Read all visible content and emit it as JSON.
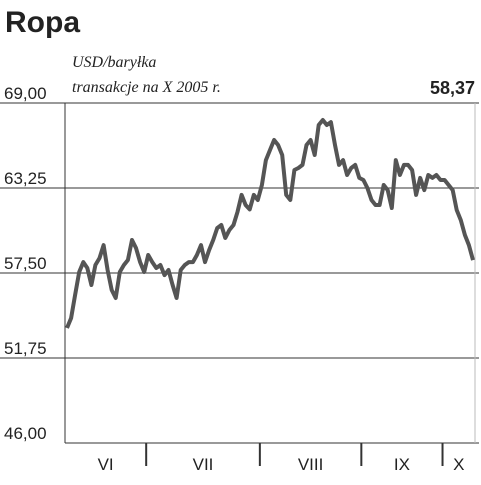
{
  "chart_data": {
    "type": "line",
    "title": "Ropa",
    "subtitle": [
      "USD/baryłka",
      "transakcje na X 2005 r."
    ],
    "value_label": "58,37",
    "color": "#555555",
    "grid": true,
    "categories": [
      "VI",
      "VII",
      "VIII",
      "IX",
      "X"
    ],
    "values": [
      [
        53.78,
        54.45,
        56.01,
        57.57,
        58.24,
        57.84,
        56.69,
        58.04,
        58.51,
        59.39,
        57.7,
        56.35,
        55.81,
        57.57,
        58.04,
        58.38,
        59.73,
        59.19,
        58.24,
        57.57
      ],
      [
        58.72,
        58.24,
        57.84,
        58.04,
        57.36,
        57.7,
        56.69,
        55.81,
        57.7,
        58.04,
        58.24,
        58.24,
        58.72,
        59.39,
        58.24,
        59.05,
        59.73,
        60.54,
        60.75,
        59.87,
        60.41,
        60.75,
        61.63,
        62.78,
        62.1,
        61.8,
        62.78,
        62.44
      ],
      [
        63.45,
        65.14,
        65.82,
        66.5,
        66.16,
        65.48,
        62.78,
        62.44,
        64.47,
        64.6,
        64.81,
        66.16,
        66.5,
        65.48,
        67.51,
        67.85,
        67.51,
        67.71,
        66.16,
        64.81,
        65.14,
        64.13,
        64.6,
        64.81,
        63.93
      ],
      [
        63.79,
        63.25,
        62.44,
        62.1,
        62.1,
        63.45,
        63.11,
        61.9,
        65.14,
        64.13,
        64.81,
        64.81,
        64.47,
        62.78,
        63.93,
        63.11,
        64.13,
        63.93,
        64.13,
        63.79
      ],
      [
        63.79,
        63.45,
        63.11,
        61.76,
        61.08,
        60.07,
        59.39,
        58.37
      ]
    ],
    "ylim": [
      46,
      69
    ],
    "yticks": [
      {
        "value": 46,
        "label": "46,00"
      },
      {
        "value": 51.75,
        "label": "51,75"
      },
      {
        "value": 57.5,
        "label": "57,50"
      },
      {
        "value": 63.25,
        "label": "63,25"
      },
      {
        "value": 69,
        "label": "69,00"
      }
    ]
  }
}
